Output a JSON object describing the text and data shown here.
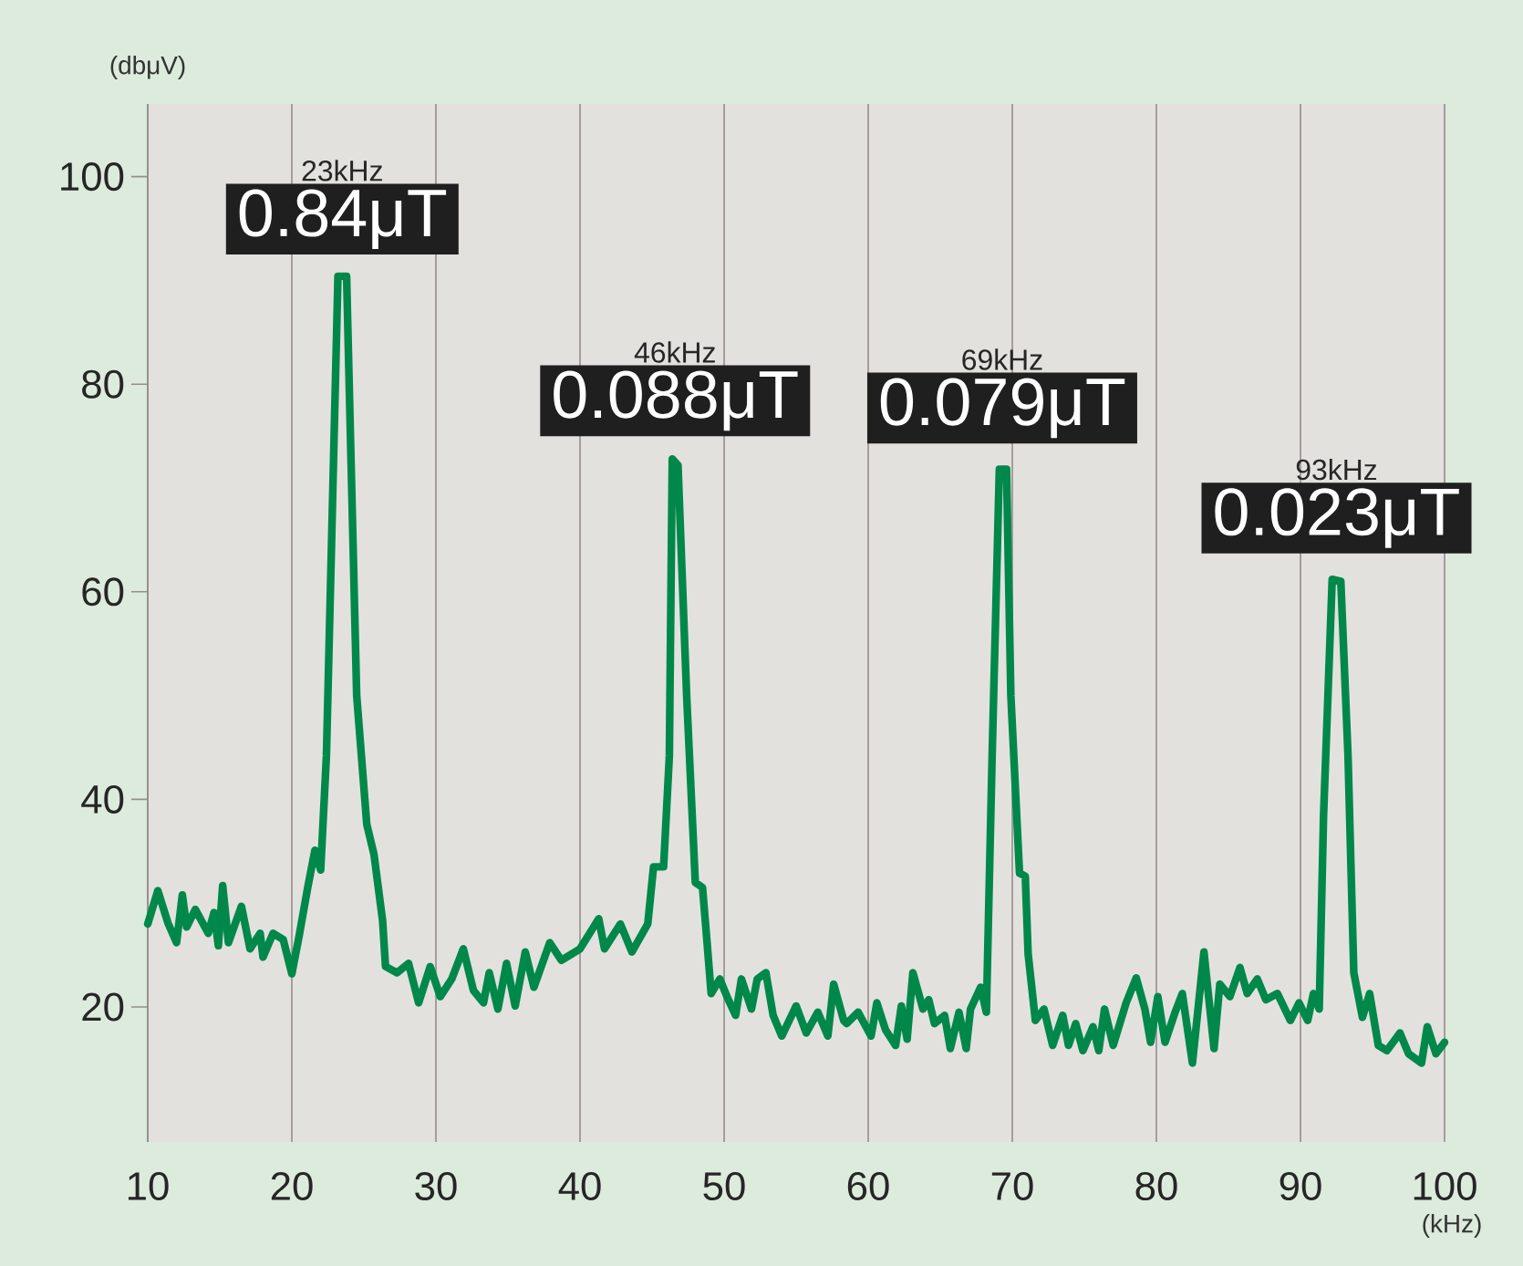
{
  "chart_data": {
    "type": "line",
    "xlabel": "(kHz)",
    "ylabel": "(dbμV)",
    "xlim": [
      10,
      100
    ],
    "xticks": [
      10,
      20,
      30,
      40,
      50,
      60,
      70,
      80,
      90,
      100
    ],
    "ylim": [
      7,
      107
    ],
    "yticks": [
      20,
      40,
      60,
      80,
      100
    ],
    "grid": "x",
    "annotations": [
      "23kHz",
      {
        "text": "0.84μT",
        "x": 23.5,
        "y": 90
      },
      "46kHz",
      {
        "text": "0.088μT",
        "x": 46.6,
        "y": 72.5
      },
      "69kHz",
      {
        "text": "0.079μT",
        "x": 69.3,
        "y": 71.8
      },
      "93kHz",
      {
        "text": "0.023μT",
        "x": 92.5,
        "y": 61.2
      }
    ],
    "series": [
      {
        "color": "#00884a",
        "x": [
          10.0,
          10.7,
          11.4,
          12.0,
          12.4,
          12.7,
          13.3,
          14.2,
          14.6,
          14.9,
          15.2,
          15.6,
          16.5,
          17.1,
          17.8,
          18.0,
          18.7,
          19.4,
          20.0,
          20.5,
          21.1,
          21.6,
          22.0,
          22.4,
          23.2,
          23.8,
          24.5,
          25.2,
          25.7,
          26.3,
          26.5,
          27.3,
          28.1,
          28.8,
          29.6,
          30.3,
          31.1,
          31.9,
          32.6,
          33.3,
          33.7,
          34.3,
          34.9,
          35.5,
          36.2,
          36.8,
          37.9,
          38.7,
          40.0,
          41.3,
          41.7,
          42.8,
          43.6,
          44.7,
          45.1,
          45.8,
          46.2,
          46.4,
          46.8,
          47.4,
          48.0,
          48.5,
          48.8,
          49.1,
          49.7,
          50.2,
          50.8,
          51.2,
          51.9,
          52.3,
          52.9,
          53.4,
          54.0,
          55.0,
          55.7,
          56.5,
          57.2,
          57.6,
          58.3,
          58.5,
          59.3,
          60.2,
          60.6,
          61.2,
          61.9,
          62.3,
          62.7,
          63.1,
          63.8,
          64.2,
          64.6,
          65.3,
          65.7,
          66.3,
          66.8,
          67.1,
          67.8,
          68.2,
          68.6,
          69.1,
          69.6,
          69.9,
          70.5,
          70.9,
          71.1,
          71.6,
          72.2,
          72.8,
          73.5,
          73.9,
          74.4,
          74.9,
          75.6,
          76.0,
          76.4,
          77.0,
          77.9,
          78.6,
          79.2,
          79.6,
          80.1,
          80.6,
          81.3,
          81.8,
          82.5,
          83.3,
          84.0,
          84.4,
          85.1,
          85.8,
          86.3,
          87.0,
          87.6,
          88.4,
          89.3,
          89.9,
          90.5,
          90.9,
          91.3,
          91.6,
          92.2,
          92.8,
          93.3,
          93.7,
          94.3,
          94.8,
          95.4,
          96.0,
          96.9,
          97.5,
          98.4,
          98.8,
          99.4,
          100.0
        ],
        "values": [
          28.0,
          31.2,
          28.1,
          26.2,
          30.8,
          27.7,
          29.4,
          27.1,
          29.1,
          25.9,
          31.7,
          26.2,
          29.7,
          25.6,
          27.1,
          24.8,
          27.1,
          26.5,
          23.2,
          26.8,
          31.5,
          35.1,
          33.2,
          44.2,
          90.4,
          90.4,
          50.0,
          37.6,
          34.7,
          28.3,
          23.9,
          23.3,
          24.2,
          20.4,
          23.9,
          21.0,
          22.7,
          25.6,
          21.6,
          20.4,
          23.3,
          19.8,
          24.2,
          20.1,
          25.3,
          21.9,
          26.2,
          24.5,
          25.6,
          28.5,
          25.6,
          28.0,
          25.3,
          28.0,
          33.5,
          33.5,
          44.2,
          72.8,
          72.2,
          50.0,
          32.0,
          31.5,
          26.5,
          21.3,
          22.7,
          21.0,
          19.2,
          22.7,
          19.8,
          22.7,
          23.3,
          19.2,
          17.2,
          20.1,
          17.5,
          19.5,
          17.2,
          22.2,
          18.7,
          18.4,
          19.5,
          17.2,
          20.4,
          17.8,
          16.3,
          20.1,
          16.9,
          23.3,
          19.8,
          20.7,
          18.4,
          19.2,
          16.0,
          19.5,
          16.0,
          19.8,
          21.9,
          19.5,
          44.2,
          71.8,
          71.8,
          50.0,
          32.9,
          32.6,
          25.1,
          18.7,
          19.8,
          16.3,
          19.2,
          16.3,
          18.4,
          15.8,
          18.1,
          15.8,
          19.8,
          16.3,
          20.4,
          22.8,
          19.8,
          16.6,
          21.0,
          16.6,
          19.5,
          21.3,
          14.6,
          25.3,
          16.0,
          22.2,
          21.0,
          23.8,
          21.3,
          22.7,
          20.7,
          21.3,
          18.7,
          20.4,
          18.7,
          21.3,
          19.8,
          38.4,
          61.2,
          61.0,
          44.2,
          23.3,
          19.0,
          21.3,
          16.3,
          15.8,
          17.5,
          15.5,
          14.6,
          18.1,
          15.5,
          16.6
        ]
      }
    ]
  }
}
